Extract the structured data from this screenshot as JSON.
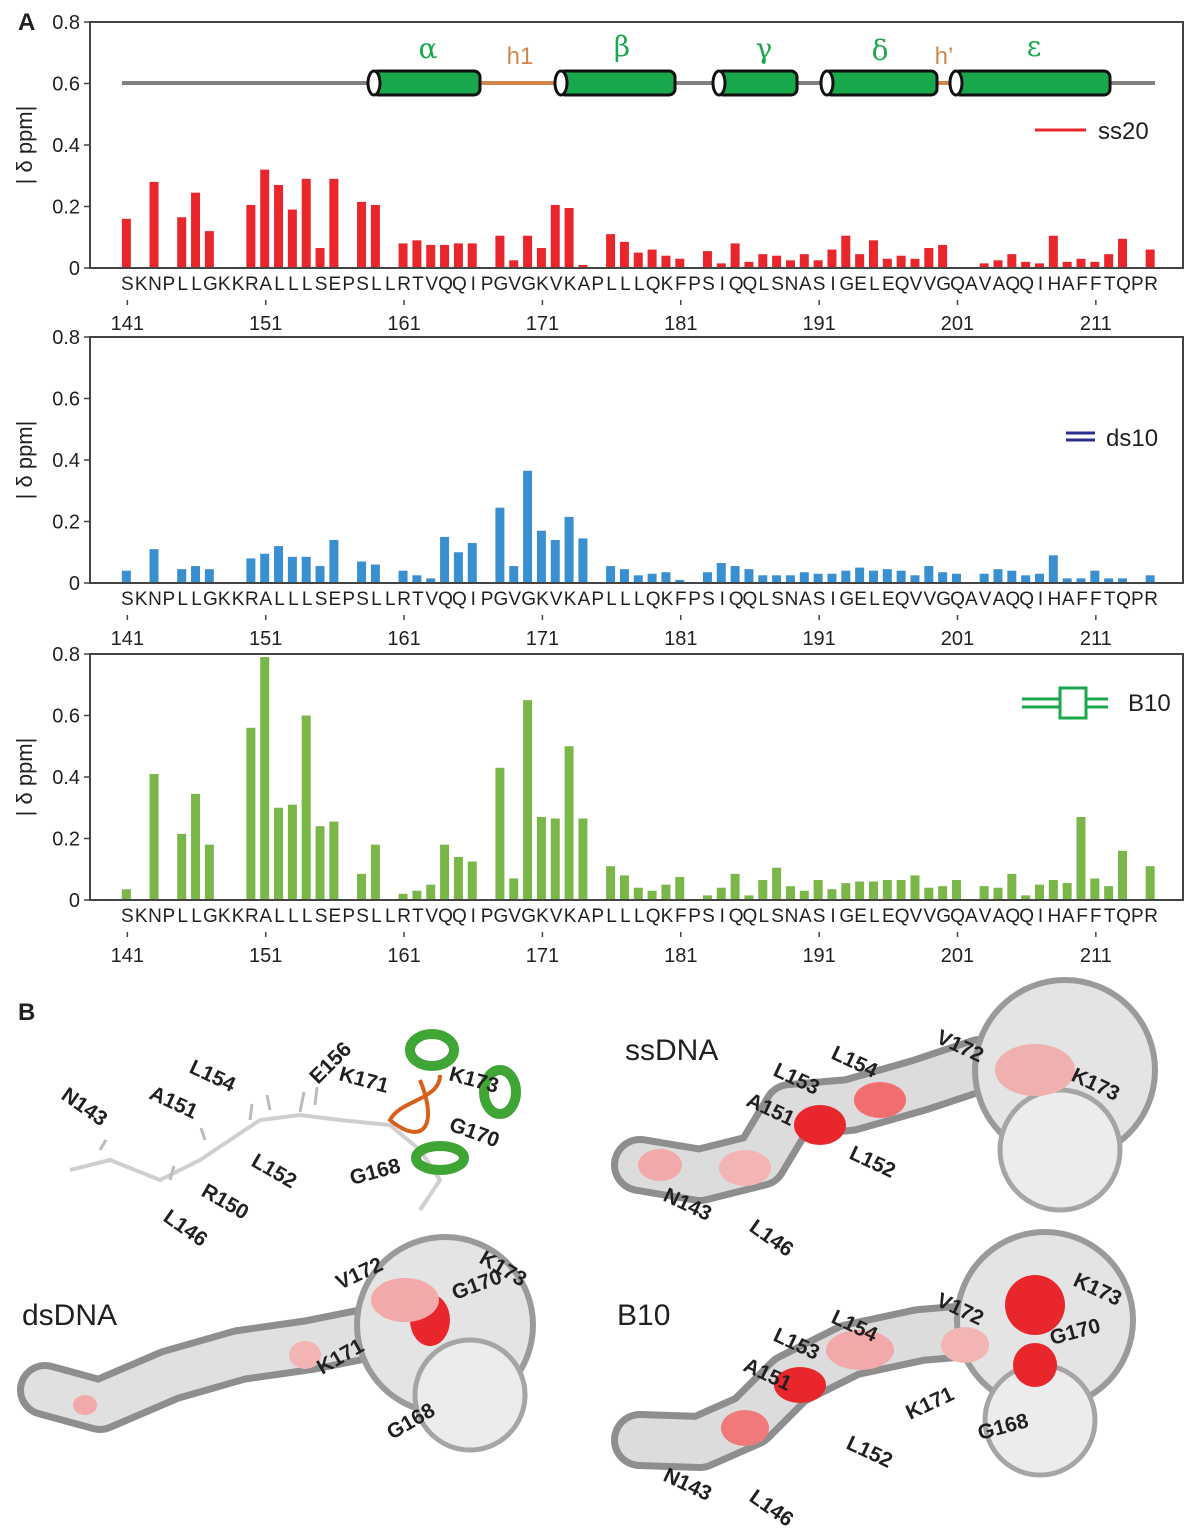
{
  "panel_a": {
    "label": "A"
  },
  "chart_data": [
    {
      "type": "bar",
      "ylabel": "| δ ppm|",
      "legend": "upper right",
      "annotations": [
        "α",
        "h1",
        "β",
        "γ",
        "δ",
        "h’",
        "ε"
      ],
      "x": [
        141,
        142,
        143,
        144,
        145,
        146,
        147,
        148,
        149,
        150,
        151,
        152,
        153,
        154,
        155,
        156,
        157,
        158,
        159,
        160,
        161,
        162,
        163,
        164,
        165,
        166,
        167,
        168,
        169,
        170,
        171,
        172,
        173,
        174,
        175,
        176,
        177,
        178,
        179,
        180,
        181,
        182,
        183,
        184,
        185,
        186,
        187,
        188,
        189,
        190,
        191,
        192,
        193,
        194,
        195,
        196,
        197,
        198,
        199,
        200,
        201,
        202,
        203,
        204,
        205,
        206,
        207,
        208,
        209,
        210,
        211,
        212,
        213,
        214,
        215
      ],
      "residue_labels": [
        "S",
        "K",
        "N",
        "P",
        "L",
        "L",
        "G",
        "K",
        "K",
        "R",
        "A",
        "L",
        "L",
        "L",
        "S",
        "E",
        "P",
        "S",
        "L",
        "L",
        "R",
        "T",
        "V",
        "Q",
        "Q",
        "I",
        "P",
        "G",
        "V",
        "G",
        "K",
        "V",
        "K",
        "A",
        "P",
        "L",
        "L",
        "L",
        "Q",
        "K",
        "F",
        "P",
        "S",
        "I",
        "Q",
        "Q",
        "L",
        "S",
        "N",
        "A",
        "S",
        "I",
        "G",
        "E",
        "L",
        "E",
        "Q",
        "V",
        "V",
        "G",
        "Q",
        "A",
        "V",
        "A",
        "Q",
        "Q",
        "I",
        "H",
        "A",
        "F",
        "F",
        "T",
        "Q",
        "P",
        "R"
      ],
      "xlim": [
        138.3,
        217.3
      ],
      "xticks": [
        141,
        151,
        161,
        171,
        181,
        191,
        201,
        211
      ],
      "ylim": [
        0,
        0.8
      ],
      "yticks": [
        0,
        0.2,
        0.4,
        0.6,
        0.8
      ],
      "series": [
        {
          "name": "ss20",
          "color": "#e8262b",
          "legend_color": "#e8262b",
          "values": [
            0.16,
            null,
            0.28,
            null,
            0.165,
            0.245,
            0.12,
            null,
            null,
            0.205,
            0.32,
            0.27,
            0.19,
            0.29,
            0.065,
            0.29,
            null,
            0.215,
            0.205,
            null,
            0.08,
            0.09,
            0.075,
            0.075,
            0.08,
            0.08,
            null,
            0.105,
            0.025,
            0.105,
            0.065,
            0.205,
            0.195,
            0.01,
            null,
            0.11,
            0.085,
            0.05,
            0.06,
            0.04,
            0.03,
            null,
            0.055,
            0.015,
            0.08,
            0.02,
            0.045,
            0.04,
            0.025,
            0.045,
            0.025,
            0.06,
            0.105,
            0.045,
            0.09,
            0.03,
            0.04,
            0.03,
            0.065,
            0.075,
            null,
            null,
            0.015,
            0.025,
            0.045,
            0.02,
            0.015,
            0.105,
            0.02,
            0.03,
            0.02,
            0.045,
            0.095,
            null,
            0.06
          ]
        }
      ]
    },
    {
      "type": "bar",
      "ylabel": "| δ ppm|",
      "legend": "upper right",
      "x": [
        141,
        142,
        143,
        144,
        145,
        146,
        147,
        148,
        149,
        150,
        151,
        152,
        153,
        154,
        155,
        156,
        157,
        158,
        159,
        160,
        161,
        162,
        163,
        164,
        165,
        166,
        167,
        168,
        169,
        170,
        171,
        172,
        173,
        174,
        175,
        176,
        177,
        178,
        179,
        180,
        181,
        182,
        183,
        184,
        185,
        186,
        187,
        188,
        189,
        190,
        191,
        192,
        193,
        194,
        195,
        196,
        197,
        198,
        199,
        200,
        201,
        202,
        203,
        204,
        205,
        206,
        207,
        208,
        209,
        210,
        211,
        212,
        213,
        214,
        215
      ],
      "residue_labels": [
        "S",
        "K",
        "N",
        "P",
        "L",
        "L",
        "G",
        "K",
        "K",
        "R",
        "A",
        "L",
        "L",
        "L",
        "S",
        "E",
        "P",
        "S",
        "L",
        "L",
        "R",
        "T",
        "V",
        "Q",
        "Q",
        "I",
        "P",
        "G",
        "V",
        "G",
        "K",
        "V",
        "K",
        "A",
        "P",
        "L",
        "L",
        "L",
        "Q",
        "K",
        "F",
        "P",
        "S",
        "I",
        "Q",
        "Q",
        "L",
        "S",
        "N",
        "A",
        "S",
        "I",
        "G",
        "E",
        "L",
        "E",
        "Q",
        "V",
        "V",
        "G",
        "Q",
        "A",
        "V",
        "A",
        "Q",
        "Q",
        "I",
        "H",
        "A",
        "F",
        "F",
        "T",
        "Q",
        "P",
        "R"
      ],
      "xlim": [
        138.3,
        217.3
      ],
      "xticks": [
        141,
        151,
        161,
        171,
        181,
        191,
        201,
        211
      ],
      "ylim": [
        0,
        0.8
      ],
      "yticks": [
        0,
        0.2,
        0.4,
        0.6,
        0.8
      ],
      "series": [
        {
          "name": "ds10",
          "color": "#3a8fd1",
          "legend_color": "#2b2f8f",
          "values": [
            0.04,
            null,
            0.11,
            null,
            0.045,
            0.055,
            0.045,
            null,
            null,
            0.08,
            0.095,
            0.12,
            0.085,
            0.085,
            0.055,
            0.14,
            null,
            0.07,
            0.06,
            null,
            0.04,
            0.025,
            0.015,
            0.15,
            0.1,
            0.13,
            null,
            0.245,
            0.055,
            0.365,
            0.17,
            0.14,
            0.215,
            0.145,
            null,
            0.055,
            0.045,
            0.025,
            0.03,
            0.035,
            0.01,
            null,
            0.035,
            0.065,
            0.055,
            0.045,
            0.025,
            0.025,
            0.025,
            0.035,
            0.03,
            0.03,
            0.04,
            0.05,
            0.04,
            0.045,
            0.04,
            0.025,
            0.055,
            0.035,
            0.03,
            null,
            0.03,
            0.045,
            0.04,
            0.025,
            0.03,
            0.09,
            0.015,
            0.015,
            0.04,
            0.015,
            0.015,
            null,
            0.025
          ]
        }
      ]
    },
    {
      "type": "bar",
      "ylabel": "| δ ppm|",
      "legend": "upper right",
      "x": [
        141,
        142,
        143,
        144,
        145,
        146,
        147,
        148,
        149,
        150,
        151,
        152,
        153,
        154,
        155,
        156,
        157,
        158,
        159,
        160,
        161,
        162,
        163,
        164,
        165,
        166,
        167,
        168,
        169,
        170,
        171,
        172,
        173,
        174,
        175,
        176,
        177,
        178,
        179,
        180,
        181,
        182,
        183,
        184,
        185,
        186,
        187,
        188,
        189,
        190,
        191,
        192,
        193,
        194,
        195,
        196,
        197,
        198,
        199,
        200,
        201,
        202,
        203,
        204,
        205,
        206,
        207,
        208,
        209,
        210,
        211,
        212,
        213,
        214,
        215
      ],
      "residue_labels": [
        "S",
        "K",
        "N",
        "P",
        "L",
        "L",
        "G",
        "K",
        "K",
        "R",
        "A",
        "L",
        "L",
        "L",
        "S",
        "E",
        "P",
        "S",
        "L",
        "L",
        "R",
        "T",
        "V",
        "Q",
        "Q",
        "I",
        "P",
        "G",
        "V",
        "G",
        "K",
        "V",
        "K",
        "A",
        "P",
        "L",
        "L",
        "L",
        "Q",
        "K",
        "F",
        "P",
        "S",
        "I",
        "Q",
        "Q",
        "L",
        "S",
        "N",
        "A",
        "S",
        "I",
        "G",
        "E",
        "L",
        "E",
        "Q",
        "V",
        "V",
        "G",
        "Q",
        "A",
        "V",
        "A",
        "Q",
        "Q",
        "I",
        "H",
        "A",
        "F",
        "F",
        "T",
        "Q",
        "P",
        "R"
      ],
      "xlim": [
        138.3,
        217.3
      ],
      "xticks": [
        141,
        151,
        161,
        171,
        181,
        191,
        201,
        211
      ],
      "ylim": [
        0,
        0.8
      ],
      "yticks": [
        0,
        0.2,
        0.4,
        0.6,
        0.8
      ],
      "series": [
        {
          "name": "B10",
          "color": "#7ab648",
          "legend_color": "#1aa84c",
          "values": [
            0.035,
            null,
            0.41,
            null,
            0.215,
            0.345,
            0.18,
            null,
            null,
            0.56,
            0.79,
            0.3,
            0.31,
            0.6,
            0.24,
            0.255,
            null,
            0.085,
            0.18,
            null,
            0.02,
            0.03,
            0.05,
            0.18,
            0.14,
            0.125,
            null,
            0.43,
            0.07,
            0.65,
            0.27,
            0.265,
            0.5,
            0.265,
            null,
            0.11,
            0.08,
            0.04,
            0.03,
            0.05,
            0.075,
            null,
            0.015,
            0.04,
            0.085,
            0.015,
            0.065,
            0.105,
            0.045,
            0.03,
            0.065,
            0.035,
            0.055,
            0.06,
            0.06,
            0.065,
            0.065,
            0.08,
            0.04,
            0.045,
            0.065,
            null,
            0.045,
            0.04,
            0.085,
            0.015,
            0.05,
            0.065,
            0.055,
            0.27,
            0.07,
            0.045,
            0.16,
            null,
            0.11
          ]
        }
      ]
    }
  ],
  "panel_b": {
    "label": "B",
    "views": [
      {
        "labels": [
          "N143",
          "A151",
          "L154",
          "E156",
          "K171",
          "K173",
          "G170",
          "G168",
          "L152",
          "R150",
          "L146"
        ]
      },
      {
        "title": "ssDNA",
        "labels": [
          "L153",
          "L154",
          "V172",
          "K173",
          "A151",
          "L152",
          "N143",
          "L146"
        ]
      },
      {
        "title": "dsDNA",
        "labels": [
          "V172",
          "K173",
          "G170",
          "K171",
          "G168"
        ]
      },
      {
        "title": "B10",
        "labels": [
          "L153",
          "L154",
          "V172",
          "K173",
          "G170",
          "A151",
          "K171",
          "G168",
          "L152",
          "N143",
          "L146"
        ]
      }
    ]
  }
}
